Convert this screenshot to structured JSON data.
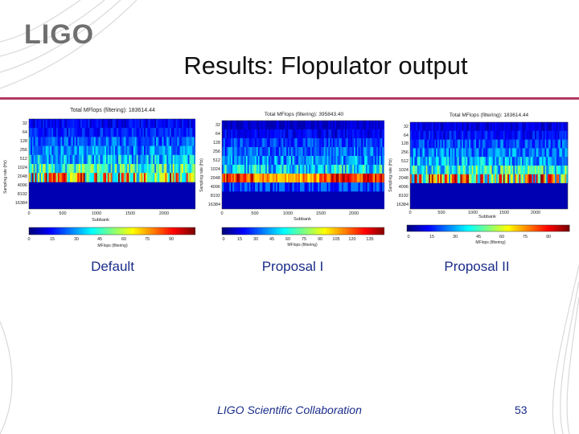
{
  "slide": {
    "logo": "LIGO",
    "title": "Results: Flopulator output",
    "footer": "LIGO Scientific Collaboration",
    "page_number": "53"
  },
  "panels": [
    {
      "id": "default",
      "caption": "Default",
      "chart_title": "Total MFlops (filtering): 183614.44",
      "y_label": "Sampling rate (Hz)",
      "x_label": "Subbank",
      "y_ticks": [
        "32",
        "64",
        "128",
        "256",
        "512",
        "1024",
        "2048",
        "4096",
        "8192",
        "16384"
      ],
      "x_ticks": [
        "0",
        "500",
        "1000",
        "1500",
        "2000"
      ],
      "colorbar_label": "MFlops (filtering)",
      "colorbar_ticks": [
        "0",
        "15",
        "30",
        "45",
        "60",
        "75",
        "90"
      ]
    },
    {
      "id": "proposal-1",
      "caption": "Proposal I",
      "chart_title": "Total MFlops (filtering): 395843.40",
      "y_label": "Sampling rate (Hz)",
      "x_label": "Subbank",
      "y_ticks": [
        "32",
        "64",
        "128",
        "256",
        "512",
        "1024",
        "2048",
        "4096",
        "8192",
        "16384"
      ],
      "x_ticks": [
        "0",
        "500",
        "1000",
        "1500",
        "2000"
      ],
      "colorbar_label": "MFlops (filtering)",
      "colorbar_ticks": [
        "0",
        "15",
        "30",
        "45",
        "60",
        "75",
        "90",
        "105",
        "120",
        "135"
      ]
    },
    {
      "id": "proposal-2",
      "caption": "Proposal II",
      "chart_title": "Total MFlops (filtering): 183614.44",
      "y_label": "Sampling rate (Hz)",
      "x_label": "Subbank",
      "y_ticks": [
        "32",
        "64",
        "128",
        "256",
        "512",
        "1024",
        "2048",
        "4096",
        "8192",
        "16384"
      ],
      "x_ticks": [
        "0",
        "500",
        "1000",
        "1500",
        "2000"
      ],
      "colorbar_label": "MFlops (filtering)",
      "colorbar_ticks": [
        "0",
        "15",
        "30",
        "45",
        "60",
        "75",
        "90"
      ]
    }
  ],
  "colors": {
    "rule": "#b03a64",
    "caption": "#1a2c8a",
    "heat_background": "#00007f"
  }
}
